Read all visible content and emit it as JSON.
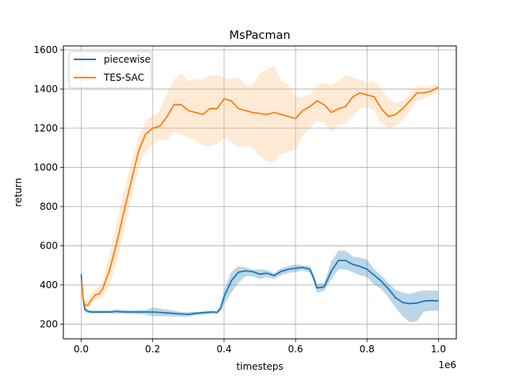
{
  "chart_data": {
    "type": "line",
    "title": "MsPacman",
    "xlabel": "timesteps",
    "ylabel": "return",
    "x_offset_label": "1e6",
    "xlim": [
      -0.05,
      1.05
    ],
    "ylim": [
      125,
      1620
    ],
    "grid": true,
    "legend_position": "top-left",
    "x_ticks": [
      {
        "value": 0.0,
        "label": "0.0"
      },
      {
        "value": 0.2,
        "label": "0.2"
      },
      {
        "value": 0.4,
        "label": "0.4"
      },
      {
        "value": 0.6,
        "label": "0.6"
      },
      {
        "value": 0.8,
        "label": "0.8"
      },
      {
        "value": 1.0,
        "label": "1.0"
      }
    ],
    "y_ticks": [
      {
        "value": 200,
        "label": "200"
      },
      {
        "value": 400,
        "label": "400"
      },
      {
        "value": 600,
        "label": "600"
      },
      {
        "value": 800,
        "label": "800"
      },
      {
        "value": 1000,
        "label": "1000"
      },
      {
        "value": 1200,
        "label": "1200"
      },
      {
        "value": 1400,
        "label": "1400"
      },
      {
        "value": 1600,
        "label": "1600"
      }
    ],
    "series": [
      {
        "name": "piecewise",
        "color": "#1f77b4",
        "band_color": "#1f77b4",
        "x": [
          0.0,
          0.005,
          0.01,
          0.02,
          0.03,
          0.05,
          0.08,
          0.1,
          0.12,
          0.15,
          0.18,
          0.2,
          0.22,
          0.25,
          0.28,
          0.3,
          0.32,
          0.35,
          0.37,
          0.38,
          0.39,
          0.4,
          0.42,
          0.44,
          0.46,
          0.48,
          0.5,
          0.52,
          0.54,
          0.56,
          0.58,
          0.6,
          0.62,
          0.64,
          0.65,
          0.66,
          0.68,
          0.7,
          0.72,
          0.74,
          0.76,
          0.78,
          0.8,
          0.82,
          0.84,
          0.86,
          0.88,
          0.9,
          0.92,
          0.94,
          0.96,
          0.98,
          1.0
        ],
        "y": [
          455,
          330,
          275,
          265,
          262,
          262,
          262,
          265,
          262,
          262,
          262,
          262,
          260,
          256,
          252,
          250,
          255,
          260,
          262,
          260,
          280,
          340,
          420,
          465,
          472,
          468,
          455,
          460,
          448,
          470,
          480,
          485,
          490,
          480,
          440,
          385,
          390,
          470,
          525,
          525,
          505,
          495,
          480,
          450,
          420,
          380,
          335,
          310,
          305,
          308,
          318,
          320,
          318
        ],
        "upper": [
          465,
          345,
          285,
          272,
          270,
          270,
          270,
          275,
          272,
          270,
          272,
          285,
          280,
          272,
          262,
          262,
          262,
          268,
          268,
          268,
          295,
          375,
          465,
          495,
          490,
          478,
          480,
          475,
          460,
          485,
          495,
          505,
          500,
          495,
          455,
          405,
          410,
          520,
          575,
          575,
          545,
          540,
          530,
          480,
          450,
          410,
          375,
          360,
          355,
          365,
          372,
          372,
          370
        ],
        "lower": [
          440,
          310,
          262,
          255,
          254,
          254,
          254,
          255,
          252,
          252,
          250,
          240,
          240,
          240,
          238,
          238,
          245,
          250,
          255,
          252,
          265,
          300,
          360,
          410,
          445,
          445,
          430,
          440,
          430,
          450,
          462,
          465,
          475,
          462,
          420,
          360,
          370,
          430,
          480,
          480,
          465,
          450,
          440,
          400,
          380,
          335,
          285,
          240,
          210,
          215,
          265,
          268,
          268
        ]
      },
      {
        "name": "TES-SAC",
        "color": "#ff7f0e",
        "band_color": "#ffbb78",
        "x": [
          0.0,
          0.005,
          0.01,
          0.015,
          0.02,
          0.03,
          0.04,
          0.05,
          0.06,
          0.08,
          0.1,
          0.12,
          0.14,
          0.16,
          0.18,
          0.2,
          0.22,
          0.24,
          0.26,
          0.28,
          0.3,
          0.32,
          0.34,
          0.36,
          0.38,
          0.4,
          0.42,
          0.44,
          0.46,
          0.48,
          0.5,
          0.52,
          0.54,
          0.56,
          0.58,
          0.6,
          0.62,
          0.64,
          0.66,
          0.68,
          0.7,
          0.72,
          0.74,
          0.76,
          0.78,
          0.8,
          0.82,
          0.84,
          0.86,
          0.88,
          0.9,
          0.92,
          0.94,
          0.96,
          0.98,
          1.0
        ],
        "y": [
          430,
          330,
          300,
          295,
          300,
          330,
          350,
          355,
          380,
          480,
          620,
          780,
          930,
          1080,
          1170,
          1200,
          1210,
          1260,
          1320,
          1320,
          1290,
          1280,
          1270,
          1300,
          1300,
          1350,
          1340,
          1300,
          1290,
          1280,
          1275,
          1270,
          1280,
          1270,
          1260,
          1250,
          1290,
          1310,
          1340,
          1320,
          1280,
          1300,
          1310,
          1360,
          1380,
          1370,
          1360,
          1300,
          1260,
          1270,
          1300,
          1340,
          1380,
          1380,
          1390,
          1410
        ],
        "upper": [
          450,
          360,
          330,
          320,
          325,
          360,
          380,
          390,
          420,
          560,
          720,
          880,
          1020,
          1150,
          1240,
          1260,
          1290,
          1380,
          1450,
          1480,
          1440,
          1450,
          1450,
          1470,
          1470,
          1460,
          1450,
          1460,
          1420,
          1420,
          1480,
          1500,
          1520,
          1440,
          1420,
          1360,
          1360,
          1370,
          1420,
          1430,
          1420,
          1440,
          1470,
          1460,
          1450,
          1430,
          1440,
          1400,
          1350,
          1330,
          1340,
          1370,
          1420,
          1410,
          1420,
          1430
        ],
        "lower": [
          400,
          300,
          280,
          275,
          280,
          305,
          325,
          330,
          340,
          400,
          520,
          680,
          840,
          1000,
          1080,
          1120,
          1140,
          1140,
          1180,
          1170,
          1150,
          1140,
          1110,
          1110,
          1120,
          1150,
          1130,
          1100,
          1110,
          1100,
          1060,
          1030,
          1030,
          1070,
          1080,
          1090,
          1160,
          1200,
          1240,
          1230,
          1180,
          1220,
          1220,
          1260,
          1300,
          1310,
          1290,
          1220,
          1200,
          1210,
          1240,
          1290,
          1340,
          1350,
          1370,
          1390
        ]
      }
    ]
  }
}
